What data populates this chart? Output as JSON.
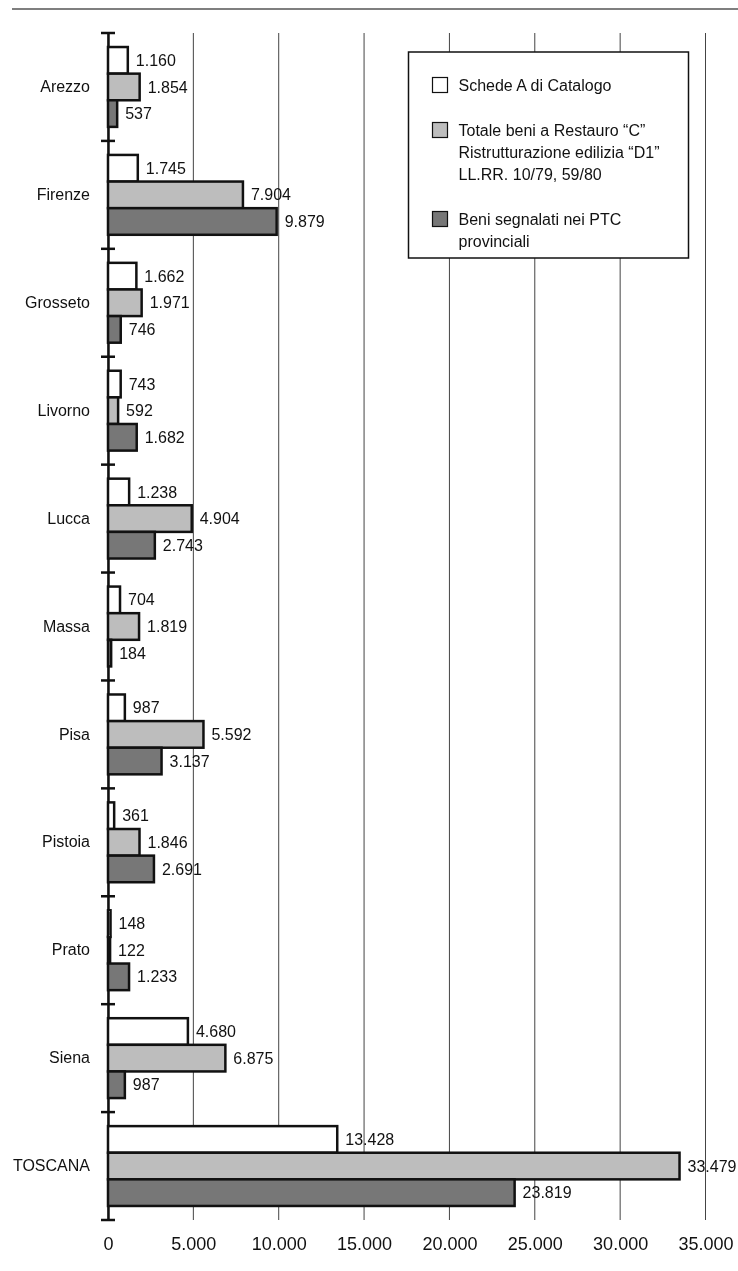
{
  "chart_data": {
    "type": "bar",
    "orientation": "horizontal",
    "categories": [
      "Arezzo",
      "Firenze",
      "Grosseto",
      "Livorno",
      "Lucca",
      "Massa",
      "Pisa",
      "Pistoia",
      "Prato",
      "Siena",
      "TOSCANA"
    ],
    "series": [
      {
        "name": "Schede A di Catalogo",
        "color": "#ffffff",
        "values": [
          1160,
          1745,
          1662,
          743,
          1238,
          704,
          987,
          361,
          148,
          4680,
          13428
        ],
        "value_labels": [
          "1.160",
          "1.745",
          "1.662",
          "743",
          "1.238",
          "704",
          "987",
          "361",
          "148",
          "4.680",
          "13.428"
        ]
      },
      {
        "name": "Totale beni a Restauro “C” Ristrutturazione edilizia “D1” LL.RR. 10/79, 59/80",
        "color": "#bdbdbd",
        "values": [
          1854,
          7904,
          1971,
          592,
          4904,
          1819,
          5592,
          1846,
          122,
          6875,
          33479
        ],
        "value_labels": [
          "1.854",
          "7.904",
          "1.971",
          "592",
          "4.904",
          "1.819",
          "5.592",
          "1.846",
          "122",
          "6.875",
          "33.479"
        ]
      },
      {
        "name": "Beni segnalati nei PTC provinciali",
        "color": "#777777",
        "values": [
          537,
          9879,
          746,
          1682,
          2743,
          184,
          3137,
          2691,
          1233,
          987,
          23819
        ],
        "value_labels": [
          "537",
          "9.879",
          "746",
          "1.682",
          "2.743",
          "184",
          "3.137",
          "2.691",
          "1.233",
          "987",
          "23.819"
        ]
      }
    ],
    "xlim": [
      0,
      35000
    ],
    "xticks": [
      0,
      {
        "value": 5000,
        "label": "5.000"
      },
      {
        "value": 10000,
        "label": "10.000"
      },
      {
        "value": 15000,
        "label": "15.000"
      },
      {
        "value": 20000,
        "label": "20.000"
      },
      {
        "value": 25000,
        "label": "25.000"
      },
      {
        "value": 30000,
        "label": "30.000"
      },
      {
        "value": 35000,
        "label": "35.000"
      }
    ],
    "grid": "x",
    "legend": "top right"
  }
}
